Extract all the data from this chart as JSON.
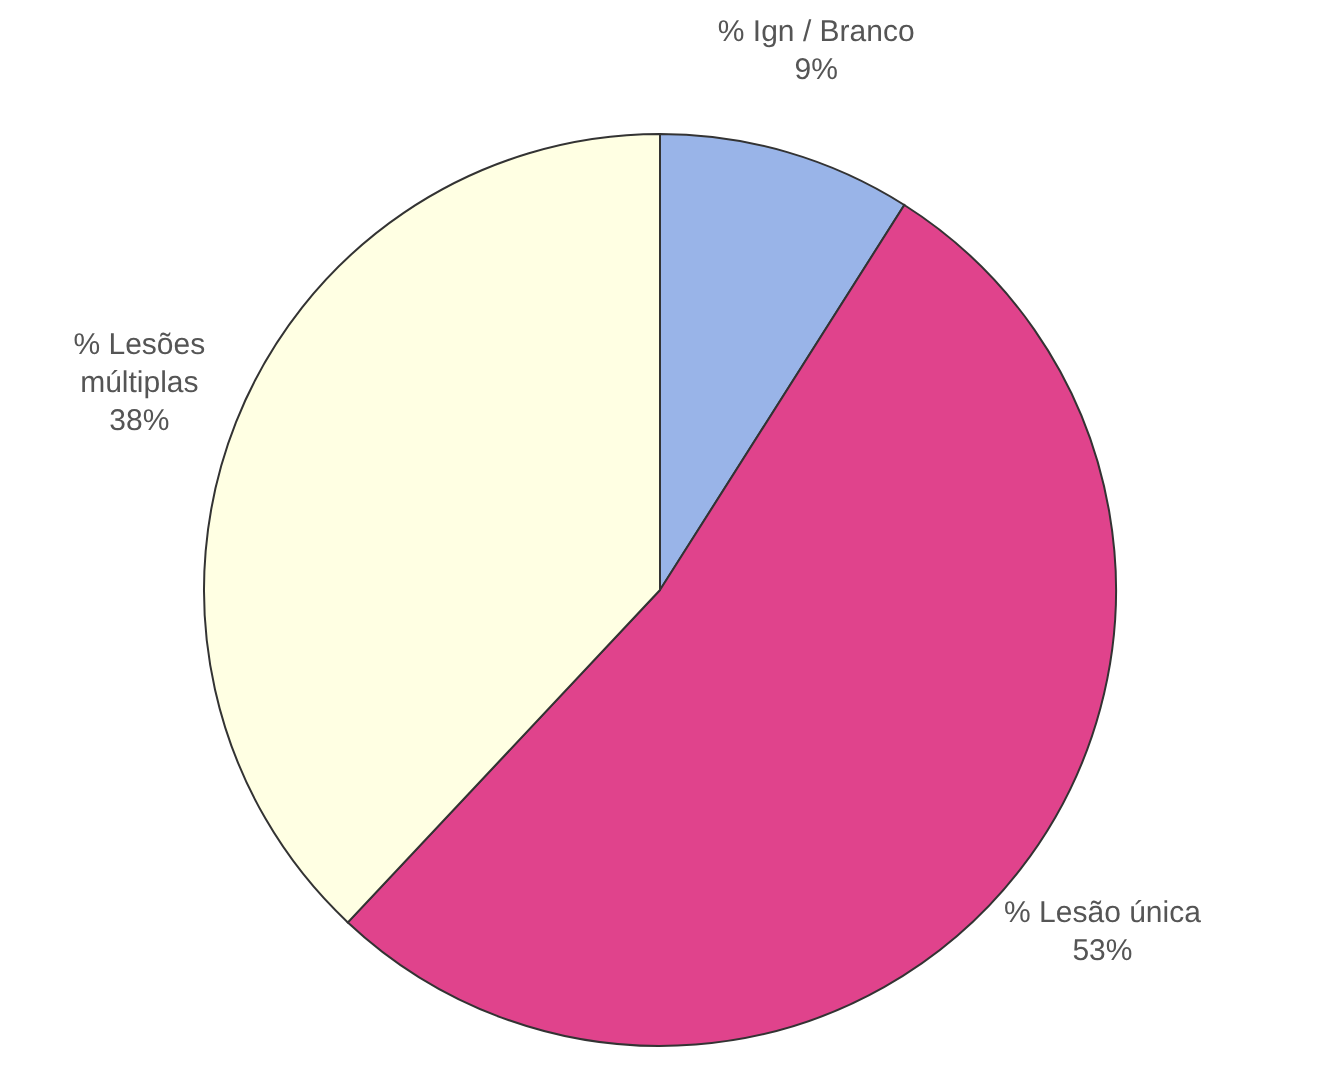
{
  "chart_data": {
    "type": "pie",
    "categories": [
      "% Ign / Branco",
      "% Lesão única",
      "% Lesões múltiplas"
    ],
    "values": [
      9,
      53,
      38
    ],
    "colors": [
      "#99b4e8",
      "#e0438c",
      "#ffffe3"
    ],
    "value_labels": [
      "9%",
      "53%",
      "38%"
    ]
  }
}
